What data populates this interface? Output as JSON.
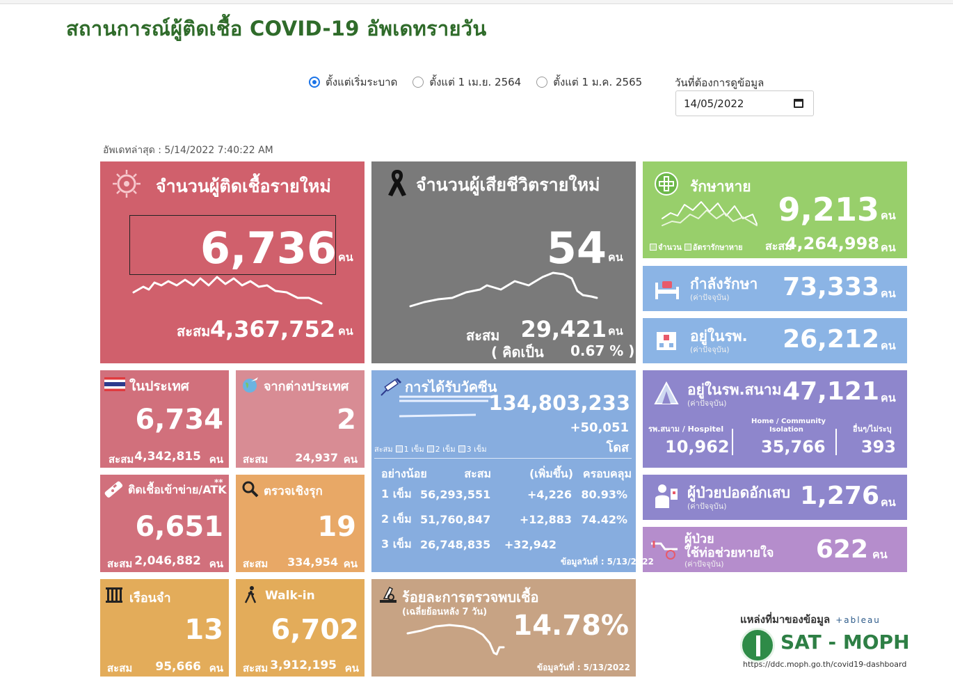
{
  "page": {
    "title": "สถานการณ์ผู้ติดเชื้อ COVID-19 อัพเดทรายวัน",
    "last_update": "อัพเดทล่าสุด : 5/14/2022 7:40:22 AM"
  },
  "filters": {
    "options": [
      "ตั้งแต่เริ่มระบาด",
      "ตั้งแต่ 1 เม.ย. 2564",
      "ตั้งแต่ 1 ม.ค. 2565"
    ],
    "selected": "ตั้งแต่เริ่มระบาด",
    "date_label": "วันที่ต้องการดูข้อมูล",
    "date_value": "14/05/2022"
  },
  "new_cases": {
    "title": "จำนวนผู้ติดเชื้อรายใหม่",
    "value": "6,736",
    "unit": "คน",
    "cum_label": "สะสม",
    "cum_value": "4,367,752",
    "cum_unit": "คน"
  },
  "deaths": {
    "title": "จำนวนผู้เสียชีวิตรายใหม่",
    "value": "54",
    "unit": "คน",
    "cum_label": "สะสม",
    "cum_value": "29,421",
    "cum_unit": "คน",
    "rate_open": "( คิดเป็น",
    "rate_value": "0.67 % )"
  },
  "recovered": {
    "title": "รักษาหาย",
    "value": "9,213",
    "unit": "คน",
    "legend_count": "จำนวน",
    "legend_rate": "อัตรารักษาหาย",
    "cum_label": "สะสม",
    "cum_value": "4,264,998",
    "cum_unit": "คน"
  },
  "in_treatment": {
    "title": "กำลังรักษา",
    "subtitle": "(ค่าปัจจุบัน)",
    "value": "73,333",
    "unit": "คน"
  },
  "in_hospital": {
    "title": "อยู่ในรพ.",
    "subtitle": "(ค่าปัจจุบัน)",
    "value": "26,212",
    "unit": "คน"
  },
  "field_hospital": {
    "title": "อยู่ในรพ.สนาม",
    "subtitle": "(ค่าปัจจุบัน)",
    "value": "47,121",
    "unit": "คน",
    "col1_label": "รพ.สนาม / Hospitel",
    "col1_value": "10,962",
    "col2_label_1": "Home / Community",
    "col2_label_2": "Isolation",
    "col2_value": "35,766",
    "col3_label": "อื่นๆ/ไม่ระบุ",
    "col3_value": "393"
  },
  "pneumonia": {
    "title": "ผู้ป่วยปอดอักเสบ",
    "subtitle": "(ค่าปัจจุบัน)",
    "value": "1,276",
    "unit": "คน"
  },
  "ventilator": {
    "title_1": "ผู้ป่วย",
    "title_2": "ใช้ท่อช่วยหายใจ",
    "subtitle": "(ค่าปัจจุบัน)",
    "value": "622",
    "unit": "คน"
  },
  "domestic": {
    "title": "ในประเทศ",
    "value": "6,734",
    "cum_label": "สะสม",
    "cum_value": "4,342,815",
    "cum_unit": "คน"
  },
  "imported": {
    "title": "จากต่างประเทศ",
    "value": "2",
    "cum_label": "สะสม",
    "cum_value": "24,937",
    "cum_unit": "คน"
  },
  "atk": {
    "title": "ติดเชื้อเข้าข่าย/ATK",
    "mark": "**",
    "value": "6,651",
    "cum_label": "สะสม",
    "cum_value": "2,046,882",
    "cum_unit": "คน"
  },
  "proactive": {
    "title": "ตรวจเชิงรุก",
    "value": "19",
    "cum_label": "สะสม",
    "cum_value": "334,954",
    "cum_unit": "คน"
  },
  "prison": {
    "title": "เรือนจำ",
    "value": "13",
    "cum_label": "สะสม",
    "cum_value": "95,666",
    "cum_unit": "คน"
  },
  "walkin": {
    "title": "Walk-in",
    "value": "6,702",
    "cum_label": "สะสม",
    "cum_value": "3,912,195",
    "cum_unit": "คน"
  },
  "vaccine": {
    "title": "การได้รับวัคซีน",
    "total": "134,803,233",
    "increase": "+50,051",
    "unit": "โดส",
    "legend_cum": "สะสม",
    "legend_1": "1 เข็ม",
    "legend_2": "2 เข็ม",
    "legend_3": "3 เข็ม",
    "headers": [
      "อย่างน้อย",
      "สะสม",
      "(เพิ่มขึ้น)",
      "ครอบคลุม"
    ],
    "rows": [
      {
        "dose": "1 เข็ม",
        "cum": "56,293,551",
        "inc": "+4,226",
        "cov": "80.93%"
      },
      {
        "dose": "2 เข็ม",
        "cum": "51,760,847",
        "inc": "+12,883",
        "cov": "74.42%"
      },
      {
        "dose": "3 เข็ม",
        "cum": "26,748,835",
        "inc": "+32,942",
        "cov": ""
      }
    ],
    "data_date": "ข้อมูลวันที่ : 5/13/2022"
  },
  "positivity": {
    "title": "ร้อยละการตรวจพบเชื้อ",
    "subtitle": "(เฉลี่ยย้อนหลัง 7 วัน)",
    "value": "14.78%",
    "data_date": "ข้อมูลวันที่ : 5/13/2022"
  },
  "source": {
    "label": "แหล่งที่มาของข้อมูล",
    "tableau": "+ableau",
    "org": "SAT - MOPH",
    "url": "https://ddc.moph.go.th/covid19-dashboard"
  },
  "colors": {
    "title_green": "#2f6b2a",
    "cases": "#d0606c",
    "deaths": "#7a7a7a",
    "recovered": "#98cf6b",
    "blue": "#8bb4e5",
    "purple": "#8e86cc"
  }
}
